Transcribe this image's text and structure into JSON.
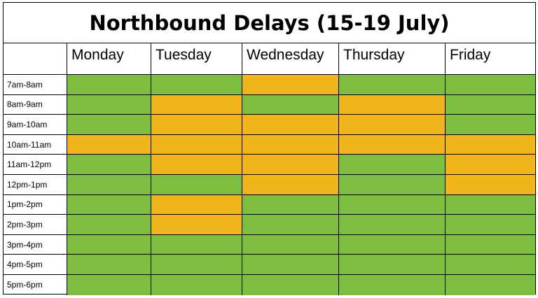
{
  "chart_data": {
    "type": "heatmap",
    "title": "Northbound Delays (15-19 July)",
    "columns": [
      "Monday",
      "Tuesday",
      "Wednesday",
      "Thursday",
      "Friday"
    ],
    "rows": [
      "7am-8am",
      "8am-9am",
      "9am-10am",
      "10am-11am",
      "11am-12pm",
      "12pm-1pm",
      "1pm-2pm",
      "2pm-3pm",
      "3pm-4pm",
      "4pm-5pm",
      "5pm-6pm"
    ],
    "values": [
      [
        0,
        0,
        1,
        0,
        0
      ],
      [
        0,
        1,
        0,
        1,
        0
      ],
      [
        0,
        1,
        1,
        1,
        0
      ],
      [
        1,
        1,
        1,
        1,
        1
      ],
      [
        0,
        1,
        1,
        0,
        1
      ],
      [
        0,
        0,
        1,
        0,
        1
      ],
      [
        0,
        1,
        0,
        0,
        0
      ],
      [
        0,
        1,
        0,
        0,
        0
      ],
      [
        0,
        0,
        0,
        0,
        0
      ],
      [
        0,
        0,
        0,
        0,
        0
      ],
      [
        0,
        0,
        0,
        0,
        0
      ]
    ],
    "colors": {
      "0": "#7dbe41",
      "1": "#f0b41c"
    },
    "grid": true
  }
}
